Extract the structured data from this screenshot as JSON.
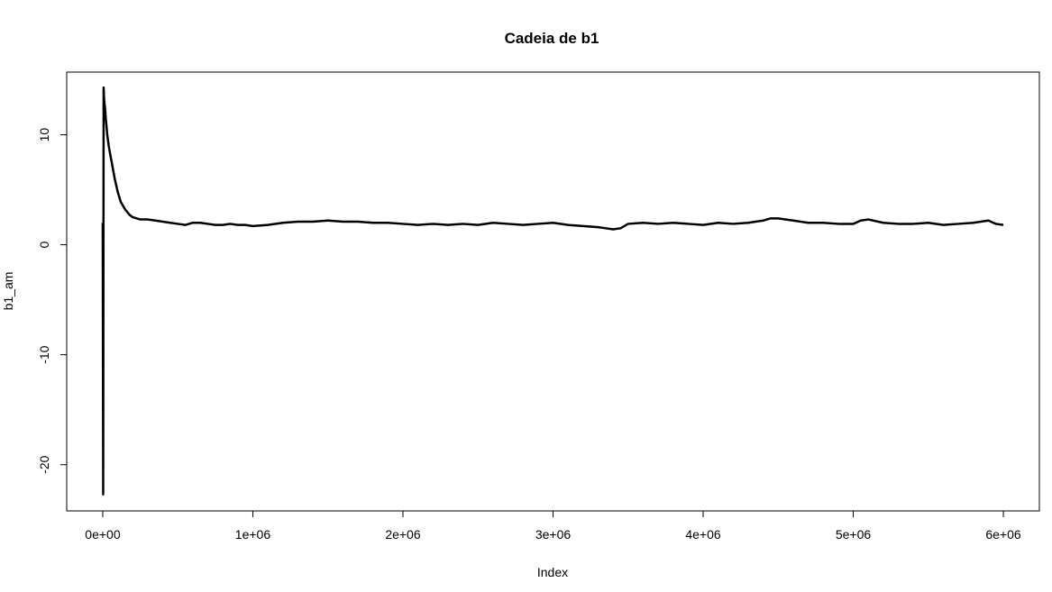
{
  "chart_data": {
    "type": "line",
    "title": "Cadeia de b1",
    "xlabel": "Index",
    "ylabel": "b1_am",
    "xlim": [
      -240000,
      6240000
    ],
    "ylim": [
      -24.2,
      15.7
    ],
    "x_ticks": [
      0,
      1000000,
      2000000,
      3000000,
      4000000,
      5000000,
      6000000
    ],
    "x_tick_labels": [
      "0e+00",
      "1e+06",
      "2e+06",
      "3e+06",
      "4e+06",
      "5e+06",
      "6e+06"
    ],
    "y_ticks": [
      -20,
      -10,
      0,
      10
    ],
    "y_tick_labels": [
      "-20",
      "-10",
      "0",
      "10"
    ],
    "grid": false,
    "series": [
      {
        "color": "#000000",
        "x": [
          0,
          3000,
          6000,
          10000,
          15000,
          20000,
          25000,
          30000,
          40000,
          50000,
          60000,
          80000,
          100000,
          120000,
          150000,
          180000,
          200000,
          250000,
          300000,
          350000,
          400000,
          450000,
          500000,
          550000,
          600000,
          650000,
          700000,
          750000,
          800000,
          850000,
          900000,
          950000,
          1000000,
          1100000,
          1200000,
          1300000,
          1400000,
          1500000,
          1600000,
          1700000,
          1800000,
          1900000,
          2000000,
          2100000,
          2200000,
          2300000,
          2400000,
          2500000,
          2600000,
          2700000,
          2800000,
          2900000,
          3000000,
          3100000,
          3200000,
          3300000,
          3350000,
          3400000,
          3450000,
          3500000,
          3600000,
          3700000,
          3800000,
          3900000,
          4000000,
          4100000,
          4200000,
          4300000,
          4400000,
          4450000,
          4500000,
          4600000,
          4700000,
          4800000,
          4900000,
          5000000,
          5050000,
          5100000,
          5200000,
          5300000,
          5400000,
          5500000,
          5600000,
          5700000,
          5800000,
          5900000,
          5950000,
          6000000
        ],
        "y": [
          2.0,
          -22.7,
          14.3,
          13.0,
          12.5,
          11.5,
          10.8,
          10.0,
          9.0,
          8.2,
          7.5,
          6.0,
          4.8,
          3.9,
          3.2,
          2.7,
          2.5,
          2.3,
          2.3,
          2.2,
          2.1,
          2.0,
          1.9,
          1.8,
          2.0,
          2.0,
          1.9,
          1.8,
          1.8,
          1.9,
          1.8,
          1.8,
          1.7,
          1.8,
          2.0,
          2.1,
          2.1,
          2.2,
          2.1,
          2.1,
          2.0,
          2.0,
          1.9,
          1.8,
          1.9,
          1.8,
          1.9,
          1.8,
          2.0,
          1.9,
          1.8,
          1.9,
          2.0,
          1.8,
          1.7,
          1.6,
          1.5,
          1.4,
          1.5,
          1.9,
          2.0,
          1.9,
          2.0,
          1.9,
          1.8,
          2.0,
          1.9,
          2.0,
          2.2,
          2.4,
          2.4,
          2.2,
          2.0,
          2.0,
          1.9,
          1.9,
          2.2,
          2.3,
          2.0,
          1.9,
          1.9,
          2.0,
          1.8,
          1.9,
          2.0,
          2.2,
          1.9,
          1.8
        ]
      }
    ]
  }
}
